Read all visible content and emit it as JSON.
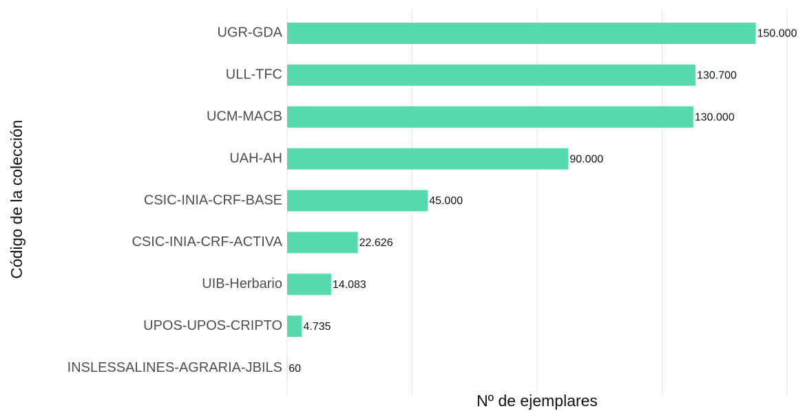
{
  "chart_data": {
    "type": "bar",
    "orientation": "horizontal",
    "xlabel": "Nº de ejemplares",
    "ylabel": "Código de la colección",
    "categories": [
      "UGR-GDA",
      "ULL-TFC",
      "UCM-MACB",
      "UAH-AH",
      "CSIC-INIA-CRF-BASE",
      "CSIC-INIA-CRF-ACTIVA",
      "UIB-Herbario",
      "UPOS-UPOS-CRIPTO",
      "INSLESSALINES-AGRARIA-JBILS"
    ],
    "values": [
      150000,
      130700,
      130000,
      90000,
      45000,
      22626,
      14083,
      4735,
      60
    ],
    "value_labels": [
      "150.000",
      "130.700",
      "130.000",
      "90.000",
      "45.000",
      "22.626",
      "14.083",
      "4.735",
      "60"
    ],
    "color": "#57d9b0",
    "xlim": [
      0,
      160000
    ],
    "xticks": [
      0,
      40000,
      80000,
      120000,
      160000
    ],
    "grid": true
  }
}
